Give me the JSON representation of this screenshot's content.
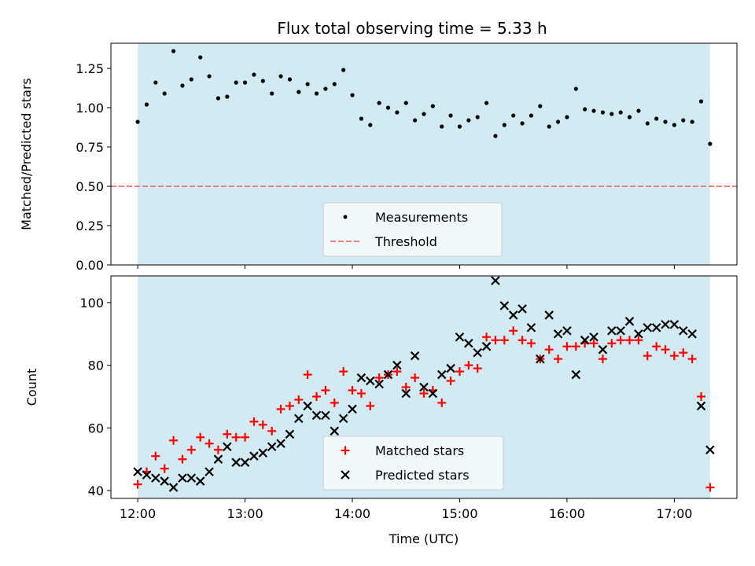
{
  "title": "Flux total observing time = 5.33 h",
  "colors": {
    "shade": "#add8e6",
    "threshold": "#f08080",
    "matched": "#ff0000",
    "predicted": "#000000",
    "measurement": "#000000"
  },
  "chart_data": [
    {
      "type": "scatter",
      "ylabel": "Matched/Predicted stars",
      "xlim": [
        "11:45",
        "17:35"
      ],
      "ylim": [
        0,
        1.41
      ],
      "yticks": [
        0.0,
        0.25,
        0.5,
        0.75,
        1.0,
        1.25
      ],
      "ytick_labels": [
        "0.00",
        "0.25",
        "0.50",
        "0.75",
        "1.00",
        "1.25"
      ],
      "shaded_range": [
        "12:00",
        "17:20"
      ],
      "threshold": 0.5,
      "legend": {
        "placement": "lower-center",
        "entries": [
          "Measurements",
          "Threshold"
        ]
      },
      "series": [
        {
          "name": "Measurements",
          "points": [
            [
              "12:00",
              0.91
            ],
            [
              "12:05",
              1.02
            ],
            [
              "12:10",
              1.16
            ],
            [
              "12:15",
              1.09
            ],
            [
              "12:20",
              1.36
            ],
            [
              "12:25",
              1.14
            ],
            [
              "12:30",
              1.18
            ],
            [
              "12:35",
              1.32
            ],
            [
              "12:40",
              1.2
            ],
            [
              "12:45",
              1.06
            ],
            [
              "12:50",
              1.07
            ],
            [
              "12:55",
              1.16
            ],
            [
              "13:00",
              1.16
            ],
            [
              "13:05",
              1.21
            ],
            [
              "13:10",
              1.17
            ],
            [
              "13:15",
              1.09
            ],
            [
              "13:20",
              1.2
            ],
            [
              "13:25",
              1.18
            ],
            [
              "13:30",
              1.1
            ],
            [
              "13:35",
              1.15
            ],
            [
              "13:40",
              1.09
            ],
            [
              "13:45",
              1.12
            ],
            [
              "13:50",
              1.15
            ],
            [
              "13:55",
              1.24
            ],
            [
              "14:00",
              1.08
            ],
            [
              "14:05",
              0.93
            ],
            [
              "14:10",
              0.89
            ],
            [
              "14:15",
              1.03
            ],
            [
              "14:20",
              1.0
            ],
            [
              "14:25",
              0.97
            ],
            [
              "14:30",
              1.03
            ],
            [
              "14:35",
              0.92
            ],
            [
              "14:40",
              0.96
            ],
            [
              "14:45",
              1.01
            ],
            [
              "14:50",
              0.88
            ],
            [
              "14:55",
              0.95
            ],
            [
              "15:00",
              0.88
            ],
            [
              "15:05",
              0.92
            ],
            [
              "15:10",
              0.94
            ],
            [
              "15:15",
              1.03
            ],
            [
              "15:20",
              0.82
            ],
            [
              "15:25",
              0.89
            ],
            [
              "15:30",
              0.95
            ],
            [
              "15:35",
              0.9
            ],
            [
              "15:40",
              0.95
            ],
            [
              "15:45",
              1.01
            ],
            [
              "15:50",
              0.88
            ],
            [
              "15:55",
              0.91
            ],
            [
              "16:00",
              0.94
            ],
            [
              "16:05",
              1.12
            ],
            [
              "16:10",
              0.99
            ],
            [
              "16:15",
              0.98
            ],
            [
              "16:20",
              0.97
            ],
            [
              "16:25",
              0.96
            ],
            [
              "16:30",
              0.97
            ],
            [
              "16:35",
              0.94
            ],
            [
              "16:40",
              0.98
            ],
            [
              "16:45",
              0.9
            ],
            [
              "16:50",
              0.93
            ],
            [
              "16:55",
              0.91
            ],
            [
              "17:00",
              0.89
            ],
            [
              "17:05",
              0.92
            ],
            [
              "17:10",
              0.91
            ],
            [
              "17:15",
              1.04
            ],
            [
              "17:20",
              0.77
            ]
          ]
        }
      ]
    },
    {
      "type": "scatter",
      "xlabel": "Time (UTC)",
      "ylabel": "Count",
      "xlim": [
        "11:45",
        "17:35"
      ],
      "ylim": [
        37.5,
        108.5
      ],
      "yticks": [
        40,
        60,
        80,
        100
      ],
      "ytick_labels": [
        "40",
        "60",
        "80",
        "100"
      ],
      "xticks": [
        "12:00",
        "13:00",
        "14:00",
        "15:00",
        "16:00",
        "17:00"
      ],
      "shaded_range": [
        "12:00",
        "17:20"
      ],
      "legend": {
        "placement": "lower-center",
        "entries": [
          "Matched stars",
          "Predicted stars"
        ]
      },
      "x": [
        "12:00",
        "12:05",
        "12:10",
        "12:15",
        "12:20",
        "12:25",
        "12:30",
        "12:35",
        "12:40",
        "12:45",
        "12:50",
        "12:55",
        "13:00",
        "13:05",
        "13:10",
        "13:15",
        "13:20",
        "13:25",
        "13:30",
        "13:35",
        "13:40",
        "13:45",
        "13:50",
        "13:55",
        "14:00",
        "14:05",
        "14:10",
        "14:15",
        "14:20",
        "14:25",
        "14:30",
        "14:35",
        "14:40",
        "14:45",
        "14:50",
        "14:55",
        "15:00",
        "15:05",
        "15:10",
        "15:15",
        "15:20",
        "15:25",
        "15:30",
        "15:35",
        "15:40",
        "15:45",
        "15:50",
        "15:55",
        "16:00",
        "16:05",
        "16:10",
        "16:15",
        "16:20",
        "16:25",
        "16:30",
        "16:35",
        "16:40",
        "16:45",
        "16:50",
        "16:55",
        "17:00",
        "17:05",
        "17:10",
        "17:15",
        "17:20"
      ],
      "series": [
        {
          "name": "Matched stars",
          "values": [
            42,
            46,
            51,
            47,
            56,
            50,
            53,
            57,
            55,
            53,
            58,
            57,
            57,
            62,
            61,
            59,
            66,
            67,
            69,
            77,
            70,
            72,
            68,
            78,
            72,
            71,
            67,
            76,
            77,
            78,
            73,
            76,
            71,
            72,
            68,
            75,
            78,
            80,
            79,
            89,
            88,
            88,
            91,
            88,
            87,
            82,
            85,
            82,
            86,
            86,
            87,
            87,
            82,
            87,
            88,
            88,
            88,
            83,
            86,
            85,
            83,
            84,
            82,
            70,
            41
          ]
        },
        {
          "name": "Predicted stars",
          "values": [
            46,
            45,
            44,
            43,
            41,
            44,
            44,
            43,
            46,
            50,
            54,
            49,
            49,
            51,
            52,
            54,
            55,
            58,
            63,
            67,
            64,
            64,
            59,
            63,
            66,
            76,
            75,
            74,
            77,
            80,
            71,
            83,
            73,
            71,
            77,
            79,
            89,
            87,
            84,
            86,
            107,
            99,
            96,
            98,
            92,
            82,
            96,
            90,
            91,
            77,
            88,
            89,
            85,
            91,
            91,
            94,
            90,
            92,
            92,
            93,
            93,
            91,
            90,
            67,
            53
          ]
        }
      ]
    }
  ]
}
